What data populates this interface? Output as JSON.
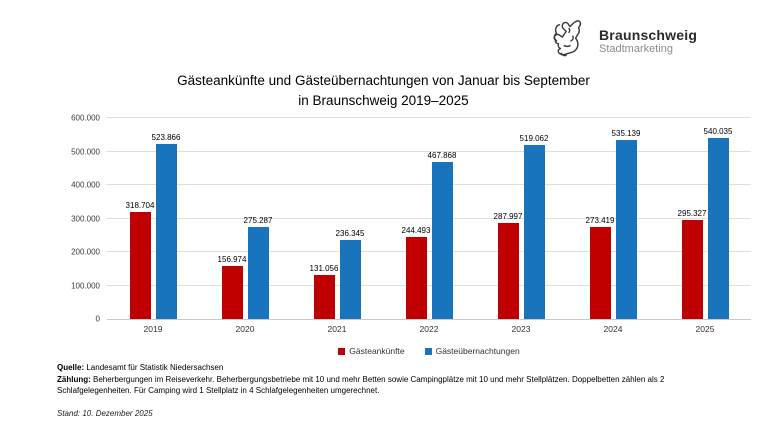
{
  "logo": {
    "brand": "Braunschweig",
    "sub": "Stadtmarketing"
  },
  "title_line1": "Gästeankünfte und Gästeübernachtungen von Januar bis September",
  "title_line2": "in Braunschweig 2019–2025",
  "chart_data": {
    "type": "bar",
    "categories": [
      "2019",
      "2020",
      "2021",
      "2022",
      "2023",
      "2024",
      "2025"
    ],
    "series": [
      {
        "name": "Gästeankünfte",
        "color": "#c00000",
        "values": [
          318704,
          156974,
          131056,
          244493,
          287997,
          273419,
          295327
        ],
        "labels": [
          "318.704",
          "156.974",
          "131.056",
          "244.493",
          "287.997",
          "273.419",
          "295.327"
        ]
      },
      {
        "name": "Gästeübernachtungen",
        "color": "#1874bc",
        "values": [
          523866,
          275287,
          236345,
          467868,
          519062,
          535139,
          540035
        ],
        "labels": [
          "523.866",
          "275.287",
          "236.345",
          "467.868",
          "519.062",
          "535.139",
          "540.035"
        ]
      }
    ],
    "title": "Gästeankünfte und Gästeübernachtungen von Januar bis September in Braunschweig 2019–2025",
    "xlabel": "",
    "ylabel": "",
    "ylim": [
      0,
      600000
    ],
    "ytick_step": 100000,
    "yticks": [
      "0",
      "100.000",
      "200.000",
      "300.000",
      "400.000",
      "500.000",
      "600.000"
    ],
    "grid": true,
    "legend_position": "bottom"
  },
  "footer": {
    "quelle_label": "Quelle:",
    "quelle_text": " Landesamt für Statistik Niedersachsen",
    "zaehlung_label": "Zählung:",
    "zaehlung_text": " Beherbergungen im Reiseverkehr. Beherbergungsbetriebe mit 10 und mehr Betten sowie Campingplätze mit 10 und mehr Stellplätzen. Doppelbetten zählen als 2 Schlafgelegenheiten. Für Camping wird 1 Stellplatz in 4 Schlafgelegenheiten umgerechnet.",
    "stand": "Stand: 10. Dezember 2025"
  }
}
